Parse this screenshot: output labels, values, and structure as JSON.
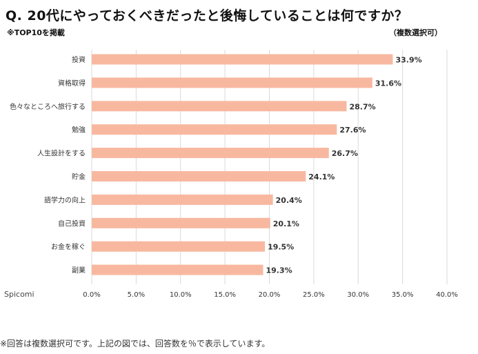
{
  "header": {
    "title": "Q. 20代にやっておくべきだったと後悔していることは何ですか？",
    "note_left": "※TOP10を掲載",
    "note_right": "（複数選択可）"
  },
  "brand": "Spicomi",
  "footnote": "※回答は複数選択可です。上記の図では、回答数を％で表示しています。",
  "colors": {
    "bar": "#f8b8a0",
    "grid": "#d9d9d9",
    "text": "#333333"
  },
  "chart_data": {
    "type": "bar",
    "orientation": "horizontal",
    "categories": [
      "投資",
      "資格取得",
      "色々なところへ旅行する",
      "勉強",
      "人生設計をする",
      "貯金",
      "語学力の向上",
      "自己投資",
      "お金を稼ぐ",
      "副業"
    ],
    "values": [
      33.9,
      31.6,
      28.7,
      27.6,
      26.7,
      24.1,
      20.4,
      20.1,
      19.5,
      19.3
    ],
    "value_labels": [
      "33.9%",
      "31.6%",
      "28.7%",
      "27.6%",
      "26.7%",
      "24.1%",
      "20.4%",
      "20.1%",
      "19.5%",
      "19.3%"
    ],
    "xlim": [
      0,
      40
    ],
    "x_ticks": [
      "0.0%",
      "5.0%",
      "10.0%",
      "15.0%",
      "20.0%",
      "25.0%",
      "30.0%",
      "35.0%",
      "40.0%"
    ],
    "grid": true
  }
}
